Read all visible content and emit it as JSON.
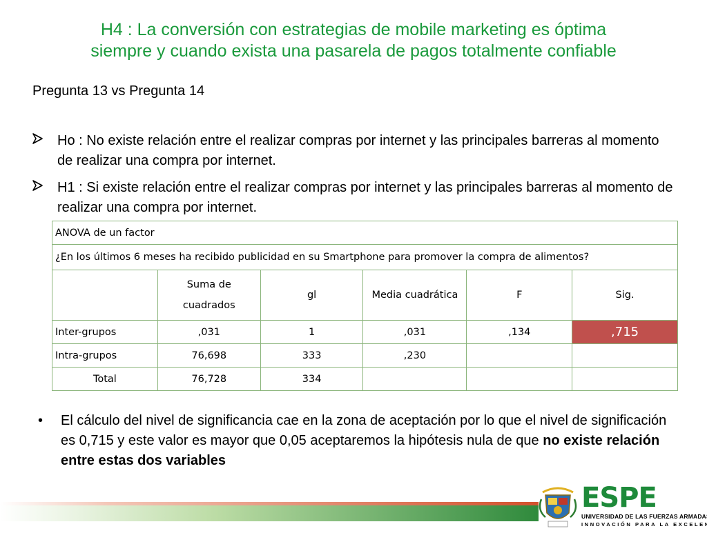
{
  "slide": {
    "title_line1": "H4 : La conversión con estrategias de mobile marketing es óptima",
    "title_line2": "siempre y cuando exista una pasarela de pagos totalmente confiable",
    "subtitle": "Pregunta 13 vs Pregunta 14",
    "hypotheses": [
      "Ho : No existe relación entre el realizar compras por internet y las principales barreras al momento de realizar una compra por internet.",
      "H1 : Si existe relación entre el realizar compras por internet y las principales barreras al momento de realizar una compra por internet."
    ]
  },
  "anova": {
    "title": "ANOVA de un factor",
    "question": "¿En los últimos 6 meses ha recibido publicidad en su Smartphone para promover la compra de alimentos?",
    "headers": {
      "blank": "",
      "suma_line1": "Suma de",
      "suma_line2": "cuadrados",
      "gl": "gl",
      "media": "Media cuadrática",
      "f": "F",
      "sig": "Sig."
    },
    "rows": [
      {
        "label": "Inter-grupos",
        "suma": ",031",
        "gl": "1",
        "media": ",031",
        "f": ",134",
        "sig": ",715"
      },
      {
        "label": "Intra-grupos",
        "suma": "76,698",
        "gl": "333",
        "media": ",230",
        "f": "",
        "sig": ""
      },
      {
        "label": "Total",
        "suma": "76,728",
        "gl": "334",
        "media": "",
        "f": "",
        "sig": ""
      }
    ],
    "highlight_color": "#c0504d"
  },
  "conclusion": {
    "bullet": "•",
    "text_plain": "El cálculo del nivel de significancia cae en la zona de aceptación por lo que el nivel de significación es 0,715 y este valor es mayor que 0,05 aceptaremos la hipótesis nula de que ",
    "text_bold": "no existe relación entre estas dos variables"
  },
  "footer": {
    "brand": "ESPE",
    "university": "UNIVERSIDAD DE LAS FUERZAS ARMADAS",
    "motto": "INNOVACIÓN PARA LA EXCELENCIA"
  },
  "colors": {
    "title_green": "#1a9a3c",
    "table_border": "#8ab47a",
    "brand_green": "#1e8a3a"
  }
}
